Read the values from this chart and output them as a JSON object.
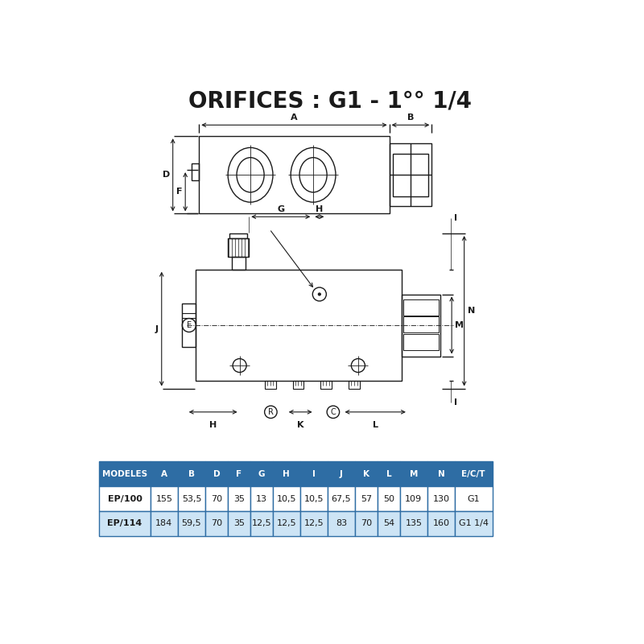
{
  "title": "ORIFICES : G1 - 1°° 1/4",
  "bg_color": "#ffffff",
  "line_color": "#1a1a1a",
  "table_header_bg": "#2e6da4",
  "table_header_fg": "#ffffff",
  "table_row1_bg": "#ffffff",
  "table_row2_bg": "#cde4f5",
  "table_border": "#2e6da4",
  "columns": [
    "MODELES",
    "A",
    "B",
    "D",
    "F",
    "G",
    "H",
    "I",
    "J",
    "K",
    "L",
    "M",
    "N",
    "E/C/T"
  ],
  "row1": [
    "EP/100",
    "155",
    "53,5",
    "70",
    "35",
    "13",
    "10,5",
    "10,5",
    "67,5",
    "57",
    "50",
    "109",
    "130",
    "G1"
  ],
  "row2": [
    "EP/114",
    "184",
    "59,5",
    "70",
    "35",
    "12,5",
    "12,5",
    "12,5",
    "83",
    "70",
    "54",
    "135",
    "160",
    "G1 1/4"
  ]
}
